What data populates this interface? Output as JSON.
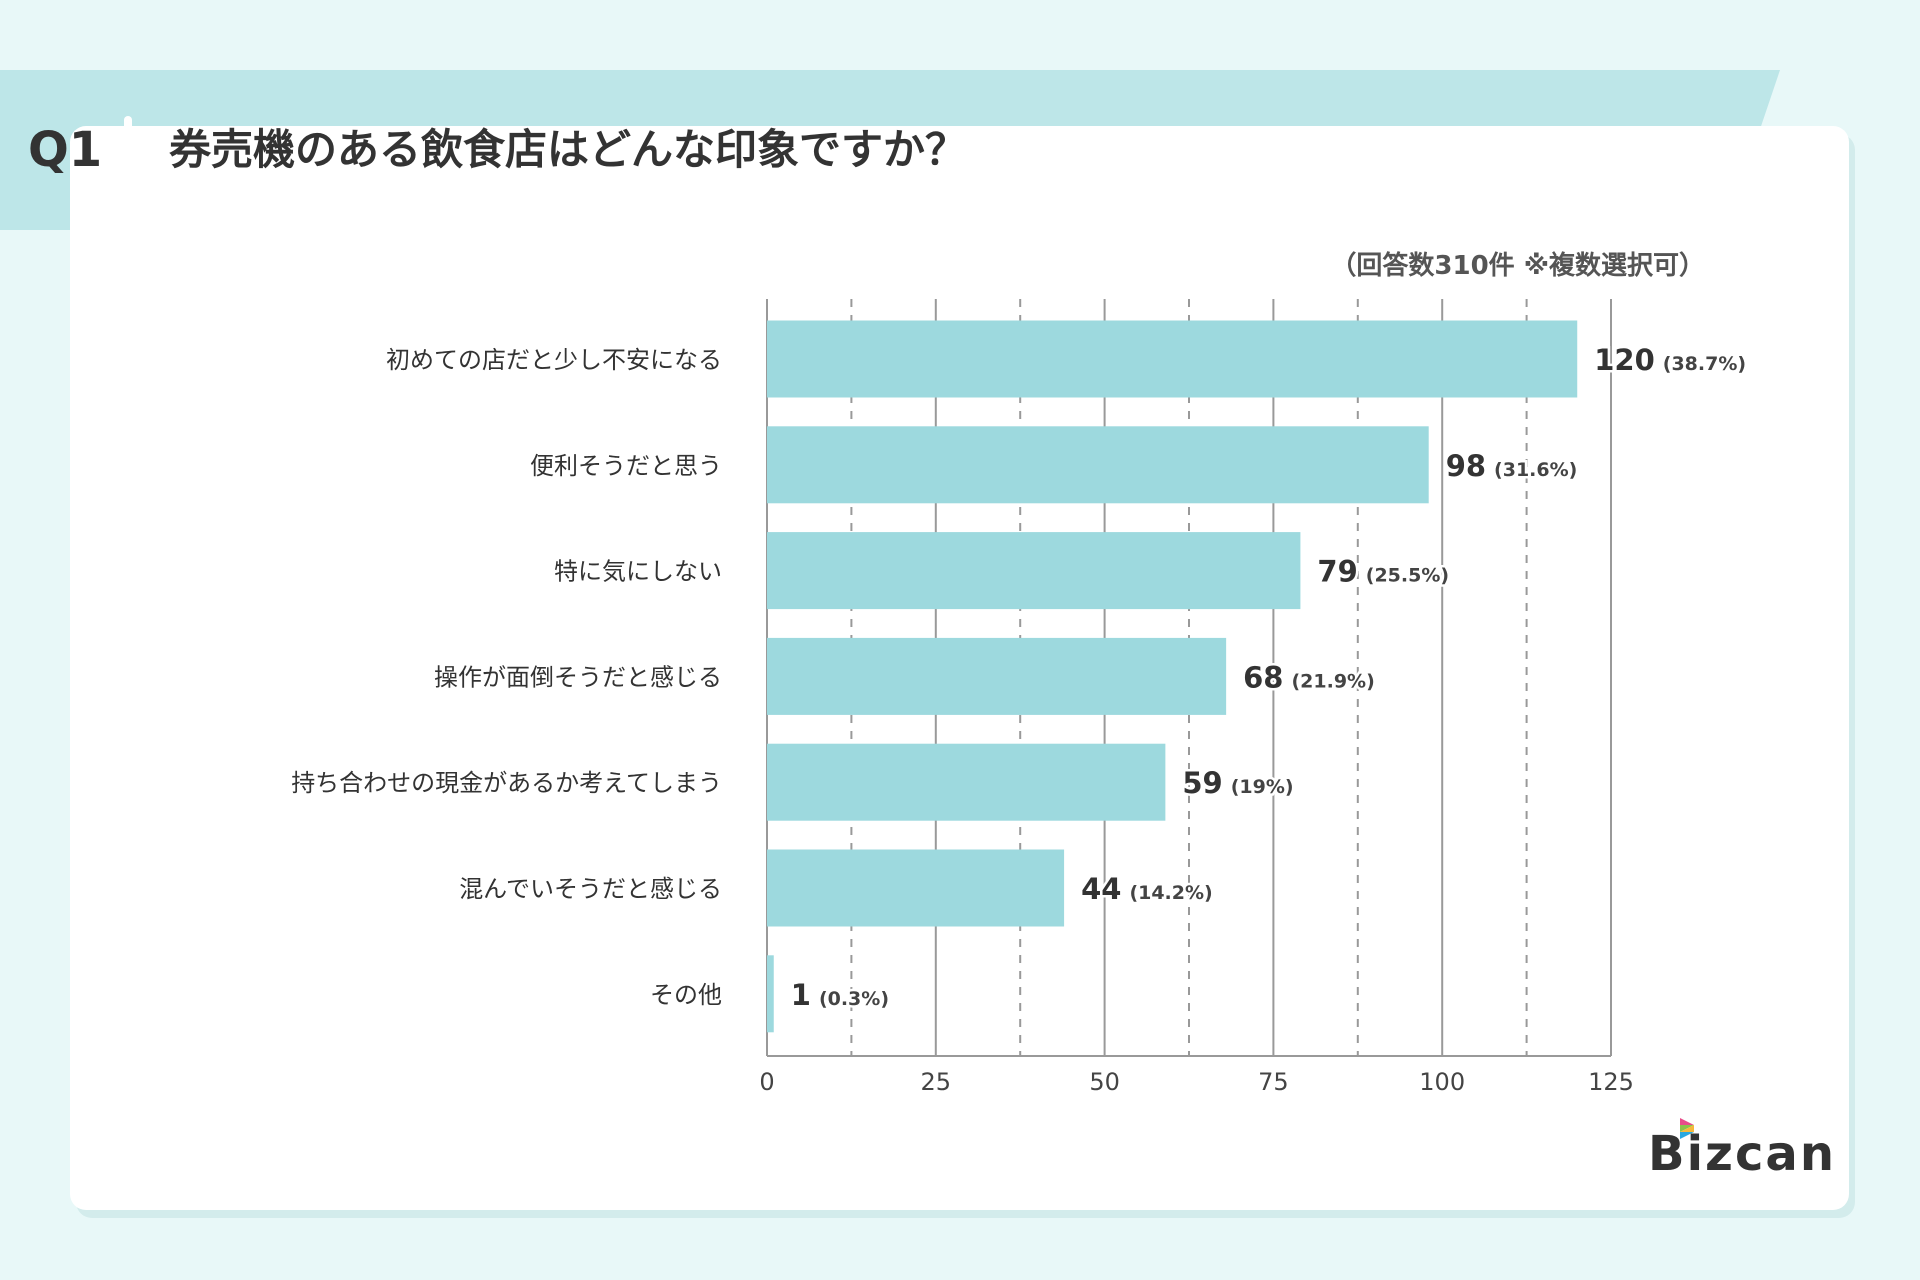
{
  "header": {
    "question_no": "Q1",
    "title": "券売機のある飲食店はどんな印象ですか？"
  },
  "note": "（回答数310件 ※複数選択可）",
  "logo": {
    "text": "Bizcan"
  },
  "colors": {
    "bar": "#9dd9de",
    "band": "#bde6e8",
    "background": "#e8f8f8"
  },
  "chart_data": {
    "type": "bar",
    "orientation": "horizontal",
    "categories": [
      "初めての店だと少し不安になる",
      "便利そうだと思う",
      "特に気にしない",
      "操作が面倒そうだと感じる",
      "持ち合わせの現金があるか考えてしまう",
      "混んでいそうだと感じる",
      "その他"
    ],
    "values": [
      120,
      98,
      79,
      68,
      59,
      44,
      1
    ],
    "percent_labels": [
      "(38.7%)",
      "(31.6%)",
      "(25.5%)",
      "(21.9%)",
      "(19%)",
      "(14.2%)",
      "(0.3%)"
    ],
    "xlim": [
      0,
      125
    ],
    "xticks": [
      "0",
      "25",
      "50",
      "75",
      "100",
      "125"
    ],
    "grid": true
  }
}
